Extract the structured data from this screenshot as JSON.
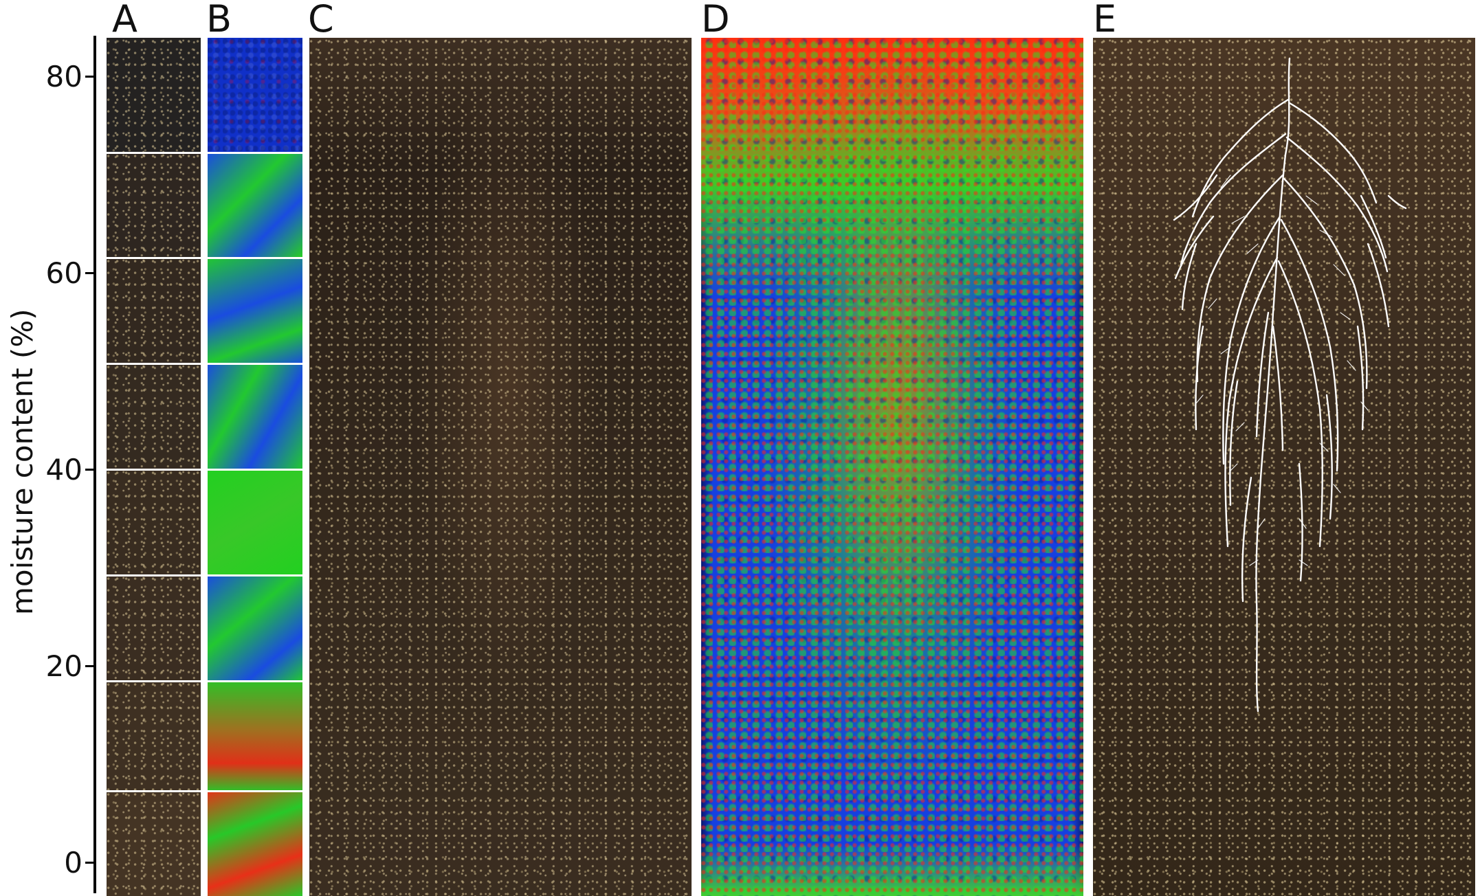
{
  "panels": {
    "a": {
      "label": "A"
    },
    "b": {
      "label": "B"
    },
    "c": {
      "label": "C"
    },
    "d": {
      "label": "D"
    },
    "e": {
      "label": "E"
    }
  },
  "axis": {
    "label": "moisture content (%)",
    "ticks": [
      "80",
      "60",
      "40",
      "20",
      "0"
    ]
  },
  "colors": {
    "soil_dark": "#2f241a",
    "soil_light": "#4a3624",
    "map_blue": "#1540e0",
    "map_green": "#22d81e",
    "map_red": "#ff2a10",
    "root": "#ffffff"
  }
}
